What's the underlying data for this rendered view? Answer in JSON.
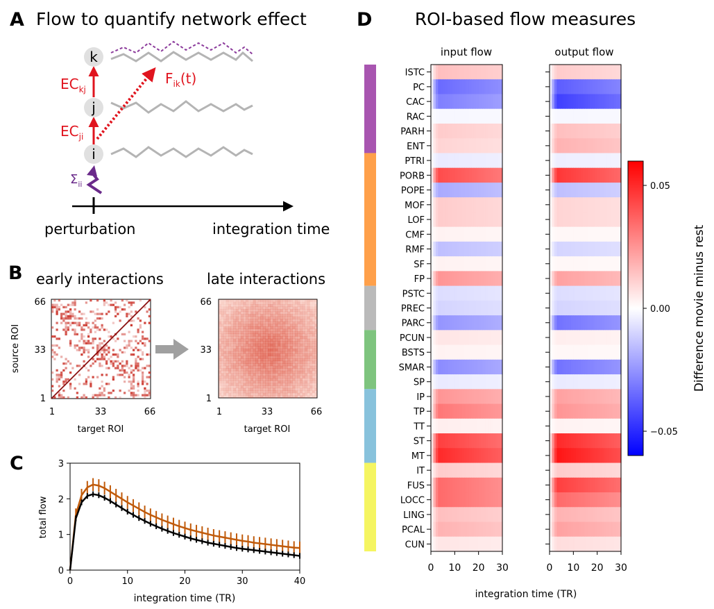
{
  "panel_a": {
    "letter": "A",
    "title": "Flow to quantify network effect",
    "nodes": [
      "k",
      "j",
      "i"
    ],
    "ec_kj": {
      "base": "EC",
      "sub": "kj"
    },
    "ec_ji": {
      "base": "EC",
      "sub": "ji"
    },
    "flow": {
      "base": "F",
      "sub": "ik",
      "suffix": "(t)"
    },
    "sigma": {
      "base": "Σ",
      "sub": "ii"
    },
    "perturbation_label": "perturbation",
    "time_label": "integration time",
    "colors": {
      "ec": "#e0141e",
      "sigma": "#6a2a8a",
      "trace": "#b4b4b4",
      "dashed": "#8b3a9b"
    }
  },
  "panel_b": {
    "letter": "B",
    "early_title": "early interactions",
    "late_title": "late interactions",
    "ylabel": "source ROI",
    "xlabel": "target ROI",
    "ticks": [
      "1",
      "33",
      "66"
    ]
  },
  "panel_c": {
    "letter": "C",
    "ylabel": "total flow",
    "xlabel": "integration time (TR)"
  },
  "panel_d": {
    "letter": "D",
    "title": "ROI-based flow measures",
    "input_title": "input flow",
    "output_title": "output flow",
    "xlabel": "integration time (TR)",
    "colorbar_label": "Difference movie minus rest",
    "colorbar_ticks": [
      "0.05",
      "0.00",
      "−0.05"
    ],
    "x_ticks": [
      "0",
      "10",
      "20",
      "30"
    ],
    "group_colors": [
      "#a855b0",
      "#ffa04a",
      "#bababa",
      "#7ec47e",
      "#88c2dc",
      "#f5f561"
    ]
  },
  "chart_data": [
    {
      "type": "line",
      "panel": "C",
      "xlabel": "integration time (TR)",
      "ylabel": "total flow",
      "xlim": [
        0,
        40
      ],
      "ylim": [
        0,
        3
      ],
      "x_ticks": [
        0,
        10,
        20,
        30,
        40
      ],
      "y_ticks": [
        0,
        1,
        2,
        3
      ],
      "x": [
        0,
        1,
        2,
        3,
        4,
        5,
        6,
        7,
        8,
        9,
        10,
        11,
        12,
        13,
        14,
        15,
        16,
        17,
        18,
        19,
        20,
        21,
        22,
        23,
        24,
        25,
        26,
        27,
        28,
        29,
        30,
        31,
        32,
        33,
        34,
        35,
        36,
        37,
        38,
        39,
        40
      ],
      "series": [
        {
          "color": "#c05a0a",
          "values": [
            0,
            1.55,
            2.1,
            2.32,
            2.4,
            2.37,
            2.3,
            2.2,
            2.1,
            2.0,
            1.9,
            1.81,
            1.72,
            1.63,
            1.55,
            1.48,
            1.41,
            1.35,
            1.29,
            1.23,
            1.18,
            1.13,
            1.09,
            1.05,
            1.01,
            0.97,
            0.94,
            0.91,
            0.88,
            0.85,
            0.82,
            0.8,
            0.77,
            0.75,
            0.73,
            0.71,
            0.69,
            0.67,
            0.65,
            0.63,
            0.62
          ],
          "error": 0.18
        },
        {
          "color": "#000000",
          "values": [
            0,
            1.45,
            1.9,
            2.08,
            2.13,
            2.1,
            2.03,
            1.94,
            1.84,
            1.74,
            1.64,
            1.55,
            1.46,
            1.38,
            1.3,
            1.23,
            1.16,
            1.1,
            1.04,
            0.99,
            0.94,
            0.89,
            0.85,
            0.81,
            0.77,
            0.74,
            0.71,
            0.68,
            0.65,
            0.62,
            0.6,
            0.58,
            0.56,
            0.54,
            0.52,
            0.5,
            0.48,
            0.46,
            0.44,
            0.42,
            0.4
          ],
          "error": 0.08
        }
      ]
    },
    {
      "type": "heatmap",
      "panel": "D",
      "rows": [
        "ISTC",
        "PC",
        "CAC",
        "RAC",
        "PARH",
        "ENT",
        "PTRI",
        "PORB",
        "POPE",
        "MOF",
        "LOF",
        "CMF",
        "RMF",
        "SF",
        "FP",
        "PSTC",
        "PREC",
        "PARC",
        "PCUN",
        "BSTS",
        "SMAR",
        "SP",
        "IP",
        "TP",
        "TT",
        "ST",
        "MT",
        "IT",
        "FUS",
        "LOCC",
        "LING",
        "PCAL",
        "CUN"
      ],
      "groups": [
        6,
        9,
        3,
        4,
        5,
        6
      ],
      "x_range": [
        0,
        30
      ],
      "x_ticks": [
        0,
        10,
        20,
        30
      ],
      "color_range": [
        -0.06,
        0.06
      ],
      "input_flow": [
        0.015,
        -0.035,
        -0.03,
        -0.002,
        0.012,
        0.01,
        -0.005,
        0.042,
        -0.02,
        0.012,
        0.012,
        0.003,
        -0.015,
        0.003,
        0.025,
        -0.008,
        -0.01,
        -0.025,
        0.006,
        0.003,
        -0.027,
        -0.005,
        0.025,
        0.032,
        0.004,
        0.045,
        0.05,
        0.012,
        0.035,
        0.035,
        0.015,
        0.018,
        0.006
      ],
      "output_flow": [
        0.012,
        -0.038,
        -0.045,
        -0.002,
        0.015,
        0.018,
        -0.004,
        0.047,
        -0.015,
        0.01,
        0.01,
        0.002,
        -0.01,
        0.002,
        0.022,
        -0.008,
        -0.01,
        -0.033,
        0.004,
        0.002,
        -0.033,
        -0.005,
        0.022,
        0.025,
        0.003,
        0.05,
        0.055,
        0.012,
        0.045,
        0.035,
        0.018,
        0.022,
        0.008
      ]
    }
  ]
}
